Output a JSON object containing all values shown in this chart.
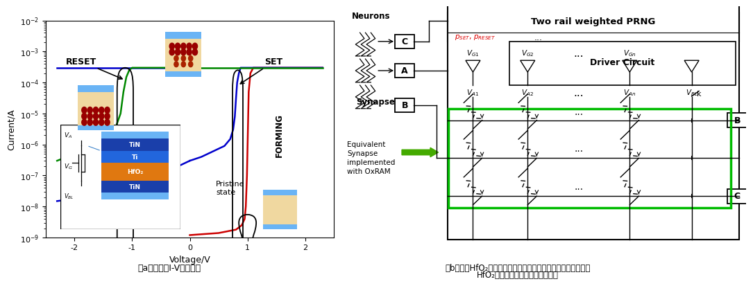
{
  "fig_width": 10.8,
  "fig_height": 4.07,
  "bg_color": "#ffffff",
  "left_caption": "（a）器件的I-V电学特性",
  "right_caption_line1": "（b）基于HfO₂忆阻器的突触实现卷积核的示意图（同一行上的",
  "right_caption_line2": "HfO₂忆阻器实现一个等效的突触）",
  "graph": {
    "xlabel": "Voltage/V",
    "ylabel": "Current/A",
    "xlim": [
      -2.5,
      2.5
    ],
    "xticks": [
      -2,
      -1,
      0,
      1,
      2
    ],
    "forming_color": "#cc0000",
    "reset_color": "#008800",
    "set_color": "#0000cc",
    "layer_colors_top_bottom": "#6ab0f5",
    "layer_tın_color": "#1a3faa",
    "layer_ti_color": "#2266dd",
    "layer_hfo_color": "#e07810",
    "device_bg": "#f5deb3",
    "device_dot_color": "#8b0000"
  },
  "circuit": {
    "highlight_color": "#00bb00",
    "arrow_green": "#44aa00",
    "red_text": "#dd0000"
  }
}
